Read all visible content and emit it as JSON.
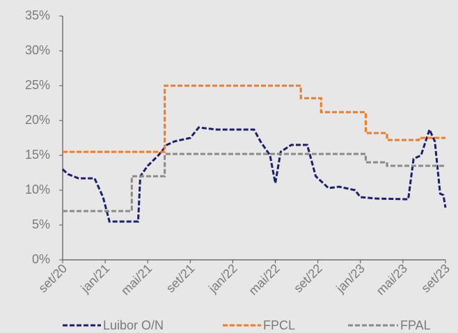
{
  "chart_data": {
    "type": "line",
    "xlim": [
      0,
      36
    ],
    "xticks": [
      {
        "value": 0,
        "label": "set/20"
      },
      {
        "value": 4,
        "label": "jan/21"
      },
      {
        "value": 8,
        "label": "mai/21"
      },
      {
        "value": 12,
        "label": "set/21"
      },
      {
        "value": 16,
        "label": "jan/22"
      },
      {
        "value": 20,
        "label": "mai/22"
      },
      {
        "value": 24,
        "label": "set/22"
      },
      {
        "value": 28,
        "label": "jan/23"
      },
      {
        "value": 32,
        "label": "mai/23"
      },
      {
        "value": 36,
        "label": "set/23"
      }
    ],
    "ylim": [
      0,
      35
    ],
    "yticks": [
      {
        "value": 0,
        "label": "0%"
      },
      {
        "value": 5,
        "label": "5%"
      },
      {
        "value": 10,
        "label": "10%"
      },
      {
        "value": 15,
        "label": "15%"
      },
      {
        "value": 20,
        "label": "20%"
      },
      {
        "value": 25,
        "label": "25%"
      },
      {
        "value": 30,
        "label": "30%"
      },
      {
        "value": 35,
        "label": "35%"
      }
    ],
    "legend": "bottom",
    "series": [
      {
        "name": "Luibor O/N",
        "color": "#1b1f6e",
        "x": [
          0,
          0.5,
          1,
          1.5,
          3,
          3.8,
          4.4,
          7.1,
          7.3,
          8,
          9,
          9.8,
          10.5,
          12,
          12.8,
          14.5,
          18,
          18.6,
          19.5,
          20,
          20.5,
          21.5,
          23,
          23.8,
          25,
          26,
          27.5,
          28,
          29.5,
          32.5,
          33,
          33.7,
          34.5,
          35,
          35.5,
          35.8,
          36
        ],
        "values": [
          13,
          12.3,
          12,
          11.7,
          11.7,
          9,
          5.5,
          5.5,
          12,
          13.5,
          15,
          16.5,
          17,
          17.5,
          19,
          18.7,
          18.7,
          17,
          15,
          11,
          15.5,
          16.5,
          16.5,
          12,
          10.3,
          10.5,
          10,
          9,
          8.8,
          8.7,
          14.5,
          15,
          18.7,
          17,
          9.5,
          9.3,
          7.5
        ]
      },
      {
        "name": "FPCL",
        "color": "#f47a20",
        "x": [
          0,
          9.6,
          9.6,
          22.4,
          22.4,
          24.3,
          24.3,
          28.5,
          28.5,
          30.5,
          30.5,
          33.5,
          33.5,
          36
        ],
        "values": [
          15.5,
          15.5,
          25,
          25,
          23.2,
          23.2,
          21.2,
          21.2,
          18.2,
          18.2,
          17.2,
          17.2,
          17.5,
          17.5
        ]
      },
      {
        "name": "FPAL",
        "color": "#8a8a8a",
        "x": [
          0,
          6.5,
          6.5,
          9.6,
          9.6,
          28.5,
          28.5,
          30.5,
          30.5,
          36
        ],
        "values": [
          7,
          7,
          12,
          12,
          15.2,
          15.2,
          14,
          14,
          13.5,
          13.5
        ]
      }
    ]
  }
}
